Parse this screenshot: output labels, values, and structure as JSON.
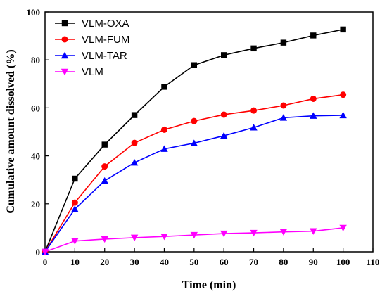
{
  "chart_data": {
    "type": "line",
    "xlabel": "Time (min)",
    "ylabel": "Cumulative amount dissolved (%)",
    "xlim": [
      0,
      110
    ],
    "ylim": [
      0,
      100
    ],
    "xticks": [
      0,
      10,
      20,
      30,
      40,
      50,
      60,
      70,
      80,
      90,
      100,
      110
    ],
    "yticks": [
      0,
      20,
      40,
      60,
      80,
      100
    ],
    "grid": false,
    "legend_position": "top-left",
    "x": [
      0,
      10,
      20,
      30,
      40,
      50,
      60,
      70,
      80,
      90,
      100
    ],
    "series": [
      {
        "name": "VLM-OXA",
        "color": "#000000",
        "marker": "square",
        "values": [
          0,
          30.5,
          44.7,
          57,
          68.8,
          77.8,
          82,
          84.8,
          87.2,
          90.2,
          92.7
        ]
      },
      {
        "name": "VLM-FUM",
        "color": "#ff0000",
        "marker": "circle",
        "values": [
          0,
          20.5,
          35.6,
          45.4,
          50.9,
          54.5,
          57.2,
          58.9,
          61,
          63.8,
          65.5
        ]
      },
      {
        "name": "VLM-TAR",
        "color": "#0000ff",
        "marker": "triangle-up",
        "values": [
          0,
          17.8,
          29.6,
          37.2,
          42.9,
          45.3,
          48.4,
          51.8,
          55.9,
          56.7,
          56.9
        ]
      },
      {
        "name": "VLM",
        "color": "#ff00ff",
        "marker": "triangle-down",
        "values": [
          0,
          4.5,
          5.3,
          5.9,
          6.4,
          7.0,
          7.6,
          7.9,
          8.3,
          8.6,
          10.0
        ]
      }
    ]
  }
}
